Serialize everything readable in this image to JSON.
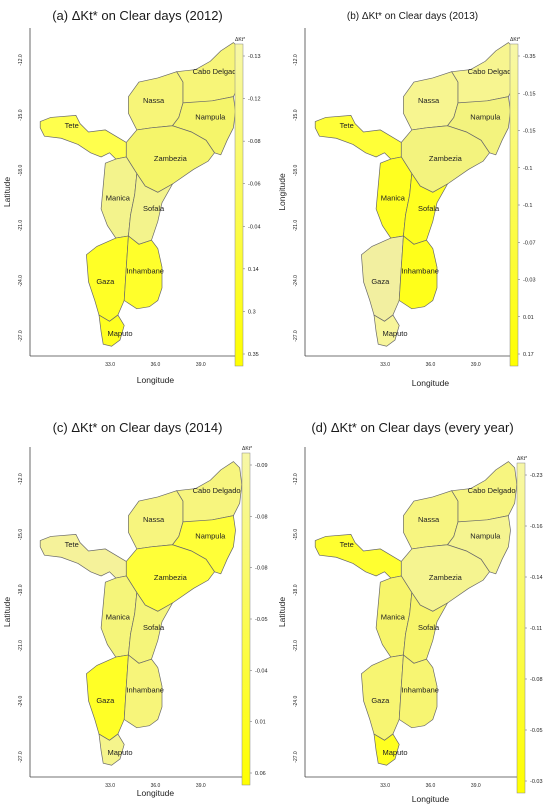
{
  "panels": [
    {
      "title": "(a) ΔKt* on Clear days (2012)",
      "xlabel": "Longitude",
      "ylabel": "Latitude",
      "x_ticks": [
        "33.0",
        "36.0",
        "39.0"
      ],
      "y_ticks": [
        "-12.0",
        "-15.0",
        "-18.0",
        "-21.0",
        "-24.0",
        "-27.0"
      ],
      "colorbar_title": "ΔKt*",
      "colorbar_ticks": [
        "-0.13",
        "-0.12",
        "-0.08",
        "-0.06",
        "-0.04",
        "0.14",
        "0.3",
        "0.35"
      ],
      "provinces": [
        {
          "name": "Tete",
          "color": "#ffff4d"
        },
        {
          "name": "Nassa",
          "color": "#f7f578"
        },
        {
          "name": "Cabo Delgado",
          "color": "#f7f578"
        },
        {
          "name": "Nampula",
          "color": "#f5f56a"
        },
        {
          "name": "Zambezia",
          "color": "#f5f56a"
        },
        {
          "name": "Manica",
          "color": "#f3f38c"
        },
        {
          "name": "Sofala",
          "color": "#f3f38c"
        },
        {
          "name": "Gaza",
          "color": "#ffff26"
        },
        {
          "name": "Inhambane",
          "color": "#ffff2b"
        },
        {
          "name": "Maputo",
          "color": "#ffff20"
        }
      ]
    },
    {
      "title": "(b) ΔKt* on Clear days (2013)",
      "xlabel": "Longitude",
      "ylabel": "Longitude",
      "x_ticks": [
        "33.0",
        "36.0",
        "39.0"
      ],
      "y_ticks": [
        "-12.0",
        "-15.0",
        "-18.0",
        "-21.0",
        "-24.0",
        "-27.0"
      ],
      "colorbar_title": "ΔKt*",
      "colorbar_ticks": [
        "-0.35",
        "-0.15",
        "-0.15",
        "-0.1",
        "-0.1",
        "-0.07",
        "-0.03",
        "0.01",
        "0.17"
      ],
      "provinces": [
        {
          "name": "Tete",
          "color": "#ffff38"
        },
        {
          "name": "Nassa",
          "color": "#f7f590"
        },
        {
          "name": "Cabo Delgado",
          "color": "#f7f590"
        },
        {
          "name": "Nampula",
          "color": "#f3f37e"
        },
        {
          "name": "Zambezia",
          "color": "#f3f37e"
        },
        {
          "name": "Manica",
          "color": "#ffff20"
        },
        {
          "name": "Sofala",
          "color": "#ffff20"
        },
        {
          "name": "Gaza",
          "color": "#f2efa0"
        },
        {
          "name": "Inhambane",
          "color": "#ffff1a"
        },
        {
          "name": "Maputo",
          "color": "#f7f59a"
        }
      ]
    },
    {
      "title": "(c) ΔKt* on Clear days (2014)",
      "xlabel": "Longitude",
      "ylabel": "Latitude",
      "x_ticks": [
        "33.0",
        "36.0",
        "39.0"
      ],
      "y_ticks": [
        "-12.0",
        "-15.0",
        "-18.0",
        "-21.0",
        "-24.0",
        "-27.0"
      ],
      "colorbar_title": "ΔKt*",
      "colorbar_ticks": [
        "-0.09",
        "-0.08",
        "-0.08",
        "-0.05",
        "-0.04",
        "0.01",
        "0.06"
      ],
      "provinces": [
        {
          "name": "Tete",
          "color": "#f5f29a"
        },
        {
          "name": "Nassa",
          "color": "#f7f57e"
        },
        {
          "name": "Cabo Delgado",
          "color": "#f7f57e"
        },
        {
          "name": "Nampula",
          "color": "#ffff38"
        },
        {
          "name": "Zambezia",
          "color": "#ffff38"
        },
        {
          "name": "Manica",
          "color": "#f5f57a"
        },
        {
          "name": "Sofala",
          "color": "#f5f57a"
        },
        {
          "name": "Gaza",
          "color": "#ffff26"
        },
        {
          "name": "Inhambane",
          "color": "#f7f57a"
        },
        {
          "name": "Maputo",
          "color": "#f5f48c"
        }
      ]
    },
    {
      "title": "(d) ΔKt* on Clear days (every year)",
      "xlabel": "Longitude",
      "ylabel": "Latitude",
      "x_ticks": [
        "33.0",
        "36.0",
        "39.0"
      ],
      "y_ticks": [
        "-12.0",
        "-15.0",
        "-18.0",
        "-21.0",
        "-24.0",
        "-27.0"
      ],
      "colorbar_title": "ΔKt*",
      "colorbar_ticks": [
        "-0.23",
        "-0.16",
        "-0.14",
        "-0.11",
        "-0.08",
        "-0.05",
        "-0.03"
      ],
      "provinces": [
        {
          "name": "Tete",
          "color": "#ffff30"
        },
        {
          "name": "Nassa",
          "color": "#f7f580"
        },
        {
          "name": "Cabo Delgado",
          "color": "#f7f580"
        },
        {
          "name": "Nampula",
          "color": "#f5f490"
        },
        {
          "name": "Zambezia",
          "color": "#f5f490"
        },
        {
          "name": "Manica",
          "color": "#f7f56a"
        },
        {
          "name": "Sofala",
          "color": "#f7f56a"
        },
        {
          "name": "Gaza",
          "color": "#f7f572"
        },
        {
          "name": "Inhambane",
          "color": "#f7f572"
        },
        {
          "name": "Maputo",
          "color": "#ffff20"
        }
      ]
    }
  ],
  "colors": {
    "bar_top": "#f7f7a8",
    "bar_bottom": "#ffff00",
    "border": "#6a6a6a"
  }
}
